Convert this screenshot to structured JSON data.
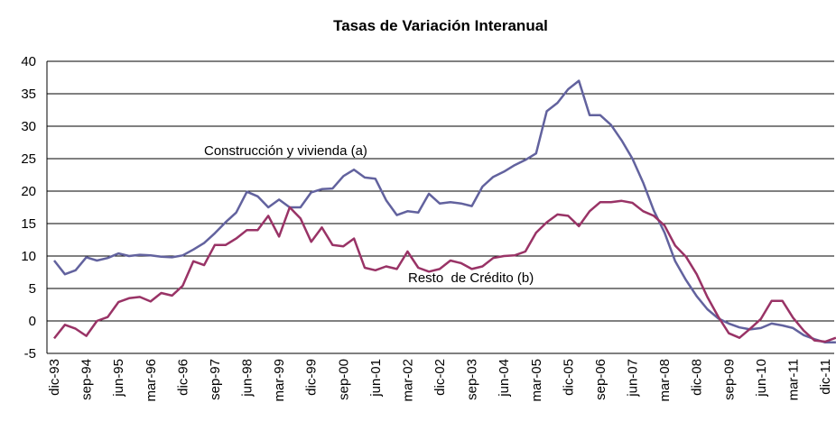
{
  "chart_data": {
    "type": "line",
    "title": "Tasas de Variación Interanual",
    "categories": [
      "dic-93",
      null,
      null,
      "sep-94",
      null,
      null,
      "jun-95",
      null,
      null,
      "mar-96",
      null,
      null,
      "dic-96",
      null,
      null,
      "sep-97",
      null,
      null,
      "jun-98",
      null,
      null,
      "mar-99",
      null,
      null,
      "dic-99",
      null,
      null,
      "sep-00",
      null,
      null,
      "jun-01",
      null,
      null,
      "mar-02",
      null,
      null,
      "dic-02",
      null,
      null,
      "sep-03",
      null,
      null,
      "jun-04",
      null,
      null,
      "mar-05",
      null,
      null,
      "dic-05",
      null,
      null,
      "sep-06",
      null,
      null,
      "jun-07",
      null,
      null,
      "mar-08",
      null,
      null,
      "dic-08",
      null,
      null,
      "sep-09",
      null,
      null,
      "jun-10",
      null,
      null,
      "mar-11",
      null,
      null,
      "dic-11",
      null
    ],
    "series": [
      {
        "name": "Construcción y vivienda (a)",
        "color": "#62629e",
        "values": [
          9.3,
          7.2,
          7.8,
          9.8,
          9.3,
          9.7,
          10.4,
          10.0,
          10.2,
          10.1,
          9.9,
          9.8,
          10.1,
          11.0,
          12.0,
          13.5,
          15.2,
          16.7,
          19.9,
          19.2,
          17.5,
          18.7,
          17.5,
          17.5,
          19.8,
          20.3,
          20.4,
          22.3,
          23.3,
          22.1,
          21.9,
          18.6,
          16.3,
          16.9,
          16.7,
          19.6,
          18.1,
          18.3,
          18.1,
          17.7,
          20.7,
          22.2,
          23.0,
          24.0,
          24.8,
          25.8,
          32.3,
          33.6,
          35.7,
          37.0,
          31.7,
          31.7,
          30.2,
          27.8,
          25.0,
          21.3,
          17.0,
          13.6,
          9.2,
          6.3,
          3.8,
          1.8,
          0.4,
          -0.4,
          -1.0,
          -1.3,
          -1.1,
          -0.4,
          -0.7,
          -1.1,
          -2.2,
          -2.8,
          -3.3,
          -3.3
        ]
      },
      {
        "name": "Resto  de Crédito (b)",
        "color": "#993366",
        "values": [
          -2.7,
          -0.6,
          -1.2,
          -2.3,
          0.0,
          0.6,
          2.9,
          3.5,
          3.7,
          3.0,
          4.3,
          3.9,
          5.4,
          9.2,
          8.6,
          11.7,
          11.7,
          12.7,
          14.0,
          14.0,
          16.2,
          13.0,
          17.5,
          15.8,
          12.2,
          14.4,
          11.7,
          11.5,
          12.7,
          8.2,
          7.8,
          8.4,
          8.0,
          10.7,
          8.2,
          7.6,
          8.0,
          9.3,
          8.9,
          8.0,
          8.4,
          9.7,
          10.0,
          10.1,
          10.7,
          13.6,
          15.2,
          16.4,
          16.2,
          14.6,
          16.9,
          18.3,
          18.3,
          18.5,
          18.2,
          16.9,
          16.2,
          14.7,
          11.6,
          9.9,
          7.2,
          3.7,
          0.7,
          -1.9,
          -2.6,
          -1.2,
          0.3,
          3.1,
          3.1,
          0.5,
          -1.5,
          -3.0,
          -3.2,
          -2.6
        ]
      }
    ],
    "ylim": [
      -5,
      40
    ],
    "yticks": [
      -5,
      0,
      5,
      10,
      15,
      20,
      25,
      30,
      35,
      40
    ],
    "grid": true
  }
}
